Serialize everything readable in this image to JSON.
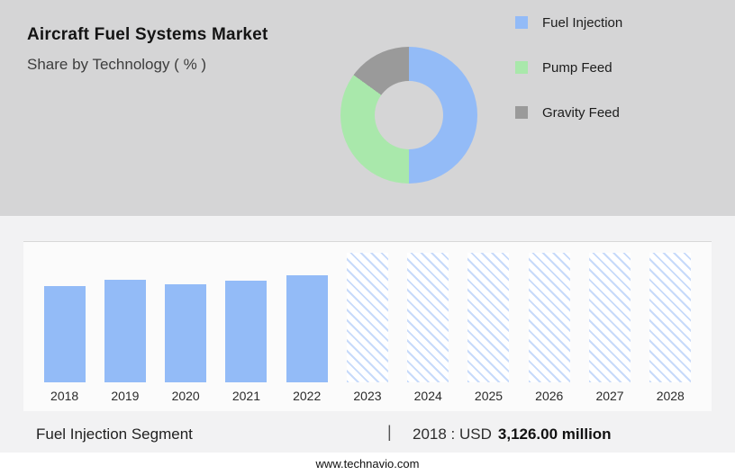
{
  "header": {
    "title": "Aircraft Fuel Systems Market",
    "subtitle": "Share by Technology ( % )"
  },
  "colors": {
    "panel_bg": "#d5d5d6",
    "blue": "#93bbf7",
    "green": "#a9e8ab",
    "gray": "#9a9a9a",
    "hatch": "#c7dafa"
  },
  "chart_data": [
    {
      "type": "pie",
      "donut": true,
      "title": "Share by Technology ( % )",
      "labels": [
        "Fuel Injection",
        "Pump Feed",
        "Gravity Feed"
      ],
      "values": [
        50,
        35,
        15
      ],
      "colors": [
        "#93bbf7",
        "#a9e8ab",
        "#9a9a9a"
      ],
      "legend_position": "right"
    },
    {
      "type": "bar",
      "title": "Fuel Injection Segment (USD million)",
      "categories": [
        "2018",
        "2019",
        "2020",
        "2021",
        "2022",
        "2023",
        "2024",
        "2025",
        "2026",
        "2027",
        "2028"
      ],
      "series": [
        {
          "name": "Fuel Injection market size (USD million)",
          "values": [
            3126,
            3330,
            3190,
            3290,
            3480,
            null,
            null,
            null,
            null,
            null,
            null
          ]
        }
      ],
      "forecast_categories": [
        "2023",
        "2024",
        "2025",
        "2026",
        "2027",
        "2028"
      ],
      "forecast_style": "hatched-placeholder",
      "xlabel": "",
      "ylabel": "USD million",
      "grid": false,
      "annotation": "2018 : USD 3,126.00 million"
    }
  ],
  "footnote": {
    "segment_label": "Fuel Injection Segment",
    "separator": "|",
    "value_prefix": "2018 : USD",
    "value_bold": "3,126.00 million"
  },
  "footer": {
    "url": "www.technavio.com"
  }
}
